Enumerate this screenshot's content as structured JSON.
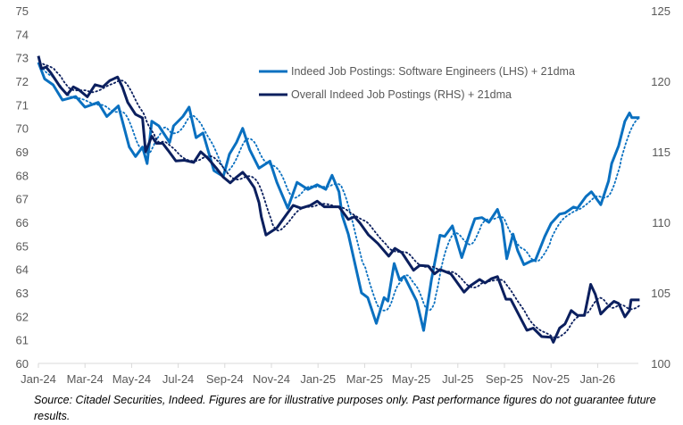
{
  "chart_data": {
    "type": "line",
    "title": "",
    "x_tick_labels": [
      "Jan-24",
      "Mar-24",
      "May-24",
      "Jul-24",
      "Sep-24",
      "Nov-24",
      "Jan-25",
      "Mar-25",
      "May-25",
      "Jul-25",
      "Sep-25",
      "Nov-25",
      "Jan-26"
    ],
    "y_left": {
      "range": [
        60,
        75
      ],
      "ticks": [
        "60",
        "61",
        "62",
        "63",
        "64",
        "65",
        "66",
        "67",
        "68",
        "69",
        "70",
        "71",
        "72",
        "73",
        "74",
        "75"
      ]
    },
    "y_right": {
      "range": [
        100,
        125
      ],
      "ticks": [
        "100",
        "105",
        "110",
        "115",
        "120",
        "125"
      ]
    },
    "grid": false,
    "legend_position": "top-center",
    "legend": [
      {
        "label": "Indeed Job Postings: Software Engineers (LHS) + 21dma",
        "color": "#0a70c0"
      },
      {
        "label": "Overall Indeed Job Postings (RHS) + 21dma",
        "color": "#0b1f5e"
      }
    ],
    "series": [
      {
        "name": "Indeed Job Postings: Software Engineers (LHS) + 21dma",
        "axis": "left",
        "color": "#0a70c0",
        "moving_average_days": 21,
        "points": [
          [
            "2024-01-01",
            72.8
          ],
          [
            "2024-01-09",
            72.1
          ],
          [
            "2024-01-20",
            71.85
          ],
          [
            "2024-02-02",
            71.2
          ],
          [
            "2024-02-19",
            71.35
          ],
          [
            "2024-03-01",
            70.9
          ],
          [
            "2024-03-18",
            71.1
          ],
          [
            "2024-03-29",
            70.5
          ],
          [
            "2024-04-14",
            70.95
          ],
          [
            "2024-04-28",
            69.2
          ],
          [
            "2024-05-06",
            68.8
          ],
          [
            "2024-05-15",
            69.2
          ],
          [
            "2024-05-21",
            68.5
          ],
          [
            "2024-05-27",
            70.3
          ],
          [
            "2024-06-06",
            70.1
          ],
          [
            "2024-06-20",
            69.4
          ],
          [
            "2024-06-25",
            70.1
          ],
          [
            "2024-07-07",
            70.5
          ],
          [
            "2024-07-15",
            70.9
          ],
          [
            "2024-07-24",
            69.6
          ],
          [
            "2024-08-03",
            69.8
          ],
          [
            "2024-08-17",
            68.2
          ],
          [
            "2024-08-29",
            67.95
          ],
          [
            "2024-09-07",
            68.9
          ],
          [
            "2024-09-16",
            69.4
          ],
          [
            "2024-09-24",
            70.0
          ],
          [
            "2024-10-03",
            69.1
          ],
          [
            "2024-10-15",
            68.3
          ],
          [
            "2024-10-29",
            68.6
          ],
          [
            "2024-11-08",
            67.7
          ],
          [
            "2024-11-22",
            66.6
          ],
          [
            "2024-12-04",
            67.7
          ],
          [
            "2024-12-18",
            67.4
          ],
          [
            "2024-12-30",
            67.6
          ],
          [
            "2025-01-11",
            67.4
          ],
          [
            "2025-01-19",
            68.0
          ],
          [
            "2025-01-28",
            67.3
          ],
          [
            "2025-02-02",
            66.3
          ],
          [
            "2025-02-10",
            65.5
          ],
          [
            "2025-02-27",
            63.0
          ],
          [
            "2025-03-05",
            62.8
          ],
          [
            "2025-03-16",
            61.7
          ],
          [
            "2025-03-26",
            62.8
          ],
          [
            "2025-04-01",
            62.65
          ],
          [
            "2025-04-09",
            64.25
          ],
          [
            "2025-04-16",
            63.55
          ],
          [
            "2025-04-22",
            63.7
          ],
          [
            "2025-05-08",
            62.65
          ],
          [
            "2025-05-17",
            61.4
          ],
          [
            "2025-05-27",
            63.55
          ],
          [
            "2025-06-08",
            65.45
          ],
          [
            "2025-06-14",
            65.4
          ],
          [
            "2025-06-24",
            65.85
          ],
          [
            "2025-07-06",
            64.5
          ],
          [
            "2025-07-17",
            65.6
          ],
          [
            "2025-07-23",
            66.15
          ],
          [
            "2025-08-02",
            66.2
          ],
          [
            "2025-08-11",
            66.0
          ],
          [
            "2025-08-22",
            66.55
          ],
          [
            "2025-08-28",
            65.95
          ],
          [
            "2025-09-04",
            64.45
          ],
          [
            "2025-09-12",
            65.5
          ],
          [
            "2025-09-18",
            64.8
          ],
          [
            "2025-09-26",
            64.2
          ],
          [
            "2025-10-05",
            64.35
          ],
          [
            "2025-10-11",
            64.4
          ],
          [
            "2025-10-23",
            65.4
          ],
          [
            "2025-10-31",
            65.95
          ],
          [
            "2025-11-12",
            66.35
          ],
          [
            "2025-11-19",
            66.4
          ],
          [
            "2025-11-30",
            66.65
          ],
          [
            "2025-12-05",
            66.6
          ],
          [
            "2025-12-16",
            67.1
          ],
          [
            "2025-12-23",
            67.3
          ],
          [
            "2026-01-05",
            66.75
          ],
          [
            "2026-01-15",
            67.75
          ],
          [
            "2026-01-19",
            68.5
          ],
          [
            "2026-01-28",
            69.25
          ],
          [
            "2026-02-06",
            70.3
          ],
          [
            "2026-02-12",
            70.65
          ],
          [
            "2026-02-15",
            70.45
          ],
          [
            "2026-02-25",
            70.45
          ]
        ]
      },
      {
        "name": "Overall Indeed Job Postings (RHS) + 21dma",
        "axis": "right",
        "color": "#0b1f5e",
        "moving_average_days": 21,
        "points": [
          [
            "2024-01-01",
            121.8
          ],
          [
            "2024-01-05",
            120.9
          ],
          [
            "2024-01-11",
            121.0
          ],
          [
            "2024-01-17",
            120.6
          ],
          [
            "2024-01-29",
            119.6
          ],
          [
            "2024-02-08",
            119.05
          ],
          [
            "2024-02-16",
            119.6
          ],
          [
            "2024-02-23",
            119.4
          ],
          [
            "2024-03-04",
            118.9
          ],
          [
            "2024-03-14",
            119.75
          ],
          [
            "2024-03-24",
            119.6
          ],
          [
            "2024-04-03",
            120.05
          ],
          [
            "2024-04-13",
            120.3
          ],
          [
            "2024-04-19",
            119.6
          ],
          [
            "2024-04-26",
            118.5
          ],
          [
            "2024-05-06",
            117.65
          ],
          [
            "2024-05-15",
            117.4
          ],
          [
            "2024-05-19",
            115.0
          ],
          [
            "2024-05-27",
            116.1
          ],
          [
            "2024-06-03",
            115.6
          ],
          [
            "2024-06-11",
            115.6
          ],
          [
            "2024-06-18",
            115.1
          ],
          [
            "2024-06-28",
            114.35
          ],
          [
            "2024-07-09",
            114.4
          ],
          [
            "2024-07-21",
            114.25
          ],
          [
            "2024-07-30",
            115.0
          ],
          [
            "2024-08-09",
            114.55
          ],
          [
            "2024-08-20",
            113.85
          ],
          [
            "2024-08-29",
            113.2
          ],
          [
            "2024-09-08",
            112.8
          ],
          [
            "2024-09-16",
            113.2
          ],
          [
            "2024-09-24",
            113.55
          ],
          [
            "2024-10-01",
            113.1
          ],
          [
            "2024-10-09",
            112.45
          ],
          [
            "2024-10-15",
            111.4
          ],
          [
            "2024-10-18",
            110.4
          ],
          [
            "2024-10-24",
            109.1
          ],
          [
            "2024-11-08",
            109.6
          ],
          [
            "2024-11-19",
            110.45
          ],
          [
            "2024-11-29",
            111.2
          ],
          [
            "2024-12-09",
            111.0
          ],
          [
            "2024-12-21",
            111.2
          ],
          [
            "2024-12-30",
            111.5
          ],
          [
            "2025-01-09",
            111.1
          ],
          [
            "2025-01-28",
            111.1
          ],
          [
            "2025-02-10",
            110.2
          ],
          [
            "2025-02-18",
            110.4
          ],
          [
            "2025-02-25",
            109.95
          ],
          [
            "2025-03-06",
            109.1
          ],
          [
            "2025-03-18",
            108.5
          ],
          [
            "2025-04-02",
            107.6
          ],
          [
            "2025-04-10",
            108.15
          ],
          [
            "2025-04-19",
            107.85
          ],
          [
            "2025-05-04",
            106.6
          ],
          [
            "2025-05-12",
            106.95
          ],
          [
            "2025-05-23",
            106.9
          ],
          [
            "2025-06-01",
            106.35
          ],
          [
            "2025-06-08",
            106.65
          ],
          [
            "2025-06-22",
            106.35
          ],
          [
            "2025-07-09",
            105.05
          ],
          [
            "2025-07-17",
            105.5
          ],
          [
            "2025-07-29",
            105.95
          ],
          [
            "2025-08-06",
            105.7
          ],
          [
            "2025-08-14",
            106.0
          ],
          [
            "2025-08-22",
            106.15
          ],
          [
            "2025-09-03",
            104.55
          ],
          [
            "2025-09-09",
            104.55
          ],
          [
            "2025-09-18",
            103.6
          ],
          [
            "2025-09-30",
            102.35
          ],
          [
            "2025-10-08",
            102.5
          ],
          [
            "2025-10-19",
            101.9
          ],
          [
            "2025-10-31",
            101.85
          ],
          [
            "2025-11-04",
            101.5
          ],
          [
            "2025-11-12",
            102.5
          ],
          [
            "2025-11-19",
            102.8
          ],
          [
            "2025-11-27",
            103.75
          ],
          [
            "2025-12-05",
            103.4
          ],
          [
            "2025-12-14",
            103.4
          ],
          [
            "2025-12-22",
            105.6
          ],
          [
            "2025-12-28",
            104.9
          ],
          [
            "2026-01-05",
            103.5
          ],
          [
            "2026-01-13",
            103.95
          ],
          [
            "2026-01-22",
            104.4
          ],
          [
            "2026-01-28",
            104.25
          ],
          [
            "2026-02-06",
            103.3
          ],
          [
            "2026-02-12",
            103.75
          ],
          [
            "2026-02-14",
            104.5
          ],
          [
            "2026-02-25",
            104.5
          ]
        ]
      }
    ]
  },
  "footnote": "Source: Citadel Securities, Indeed. Figures are for illustrative purposes only. Past performance figures do not guarantee future results."
}
